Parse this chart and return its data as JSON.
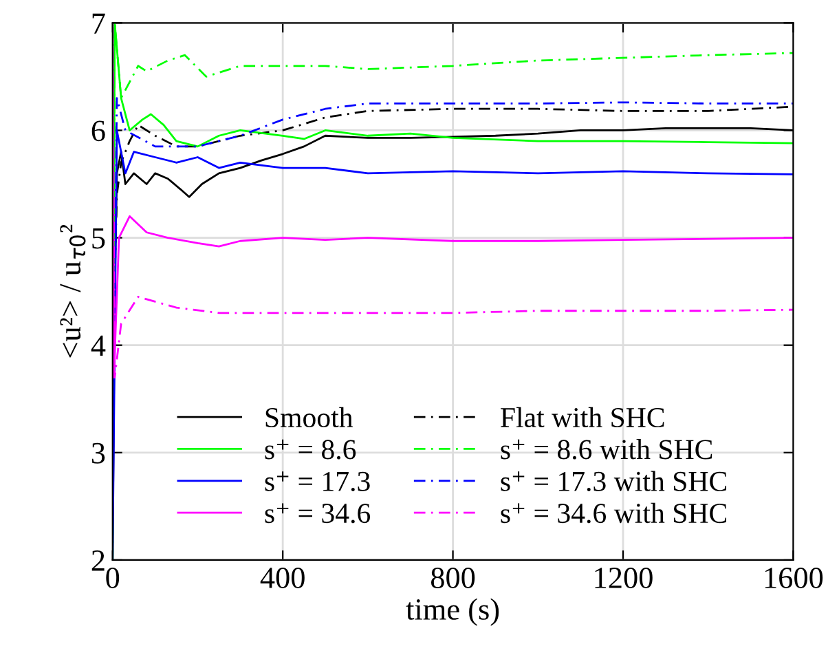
{
  "chart_data": {
    "type": "line",
    "xlabel": "time (s)",
    "ylabel": "<u²> / u$_{τ0}$²",
    "xlim": [
      0,
      1600
    ],
    "ylim": [
      2,
      7
    ],
    "xticks": [
      0,
      400,
      800,
      1200,
      1600
    ],
    "yticks": [
      2,
      3,
      4,
      5,
      6,
      7
    ],
    "grid": true,
    "legend": "bottom",
    "series": [
      {
        "name": "Smooth",
        "color": "#000000",
        "line_style": "solid",
        "x": [
          0,
          5,
          10,
          20,
          30,
          50,
          80,
          100,
          130,
          160,
          180,
          210,
          250,
          300,
          350,
          400,
          450,
          500,
          600,
          700,
          800,
          900,
          1000,
          1100,
          1200,
          1300,
          1400,
          1500,
          1600
        ],
        "values": [
          2.0,
          4.5,
          5.6,
          5.8,
          5.5,
          5.6,
          5.5,
          5.6,
          5.55,
          5.45,
          5.38,
          5.5,
          5.6,
          5.65,
          5.72,
          5.78,
          5.85,
          5.95,
          5.93,
          5.93,
          5.94,
          5.95,
          5.97,
          6.0,
          6.0,
          6.02,
          6.02,
          6.02,
          6.0
        ]
      },
      {
        "name": "Flat with SHC",
        "color": "#000000",
        "line_style": "dashed",
        "x": [
          0,
          10,
          20,
          40,
          60,
          100,
          150,
          200,
          300,
          400,
          500,
          600,
          800,
          1000,
          1200,
          1400,
          1600
        ],
        "values": [
          3.8,
          5.4,
          5.7,
          5.9,
          6.05,
          5.95,
          5.85,
          5.85,
          5.95,
          6.0,
          6.12,
          6.18,
          6.2,
          6.2,
          6.18,
          6.18,
          6.22
        ]
      },
      {
        "name": "s⁺ = 8.6",
        "color": "#00ff00",
        "line_style": "solid",
        "x": [
          0,
          5,
          20,
          40,
          70,
          90,
          120,
          150,
          200,
          250,
          300,
          400,
          450,
          500,
          600,
          700,
          800,
          1000,
          1200,
          1400,
          1600
        ],
        "values": [
          2.0,
          7.0,
          6.3,
          6.0,
          6.1,
          6.15,
          6.05,
          5.9,
          5.85,
          5.95,
          6.0,
          5.95,
          5.92,
          6.0,
          5.95,
          5.97,
          5.93,
          5.9,
          5.9,
          5.89,
          5.88
        ]
      },
      {
        "name": "s⁺ = 8.6 with SHC",
        "color": "#00ff00",
        "line_style": "dashed",
        "x": [
          0,
          5,
          20,
          60,
          80,
          130,
          170,
          220,
          300,
          500,
          600,
          800,
          1000,
          1400,
          1600
        ],
        "values": [
          2.0,
          7.0,
          6.3,
          6.6,
          6.55,
          6.65,
          6.7,
          6.5,
          6.6,
          6.6,
          6.57,
          6.6,
          6.65,
          6.7,
          6.72
        ]
      },
      {
        "name": "s⁺ = 17.3",
        "color": "#0000ff",
        "line_style": "solid",
        "x": [
          0,
          10,
          30,
          50,
          100,
          150,
          200,
          250,
          300,
          400,
          500,
          600,
          800,
          1000,
          1200,
          1400,
          1600
        ],
        "values": [
          2.0,
          6.0,
          5.6,
          5.8,
          5.75,
          5.7,
          5.75,
          5.65,
          5.7,
          5.65,
          5.65,
          5.6,
          5.62,
          5.6,
          5.62,
          5.6,
          5.59
        ]
      },
      {
        "name": "s⁺ = 17.3 with SHC",
        "color": "#0000ff",
        "line_style": "dashed",
        "x": [
          0,
          10,
          30,
          100,
          200,
          300,
          400,
          500,
          600,
          800,
          1000,
          1200,
          1400,
          1600
        ],
        "values": [
          2.5,
          6.3,
          6.0,
          5.85,
          5.85,
          5.95,
          6.1,
          6.2,
          6.25,
          6.25,
          6.25,
          6.26,
          6.25,
          6.25
        ]
      },
      {
        "name": "s⁺ = 34.6",
        "color": "#ff00ff",
        "line_style": "solid",
        "x": [
          0,
          3,
          15,
          40,
          80,
          130,
          200,
          250,
          300,
          400,
          500,
          600,
          800,
          1000,
          1200,
          1600
        ],
        "values": [
          7.0,
          3.7,
          5.0,
          5.2,
          5.05,
          5.0,
          4.95,
          4.92,
          4.97,
          5.0,
          4.98,
          5.0,
          4.97,
          4.97,
          4.98,
          5.0
        ]
      },
      {
        "name": "s⁺ = 34.6 with SHC",
        "color": "#ff00ff",
        "line_style": "dashed",
        "x": [
          0,
          5,
          20,
          60,
          150,
          250,
          400,
          600,
          800,
          1000,
          1200,
          1400,
          1600
        ],
        "values": [
          7.0,
          3.7,
          4.2,
          4.45,
          4.35,
          4.3,
          4.3,
          4.3,
          4.3,
          4.32,
          4.32,
          4.32,
          4.33
        ]
      }
    ]
  }
}
